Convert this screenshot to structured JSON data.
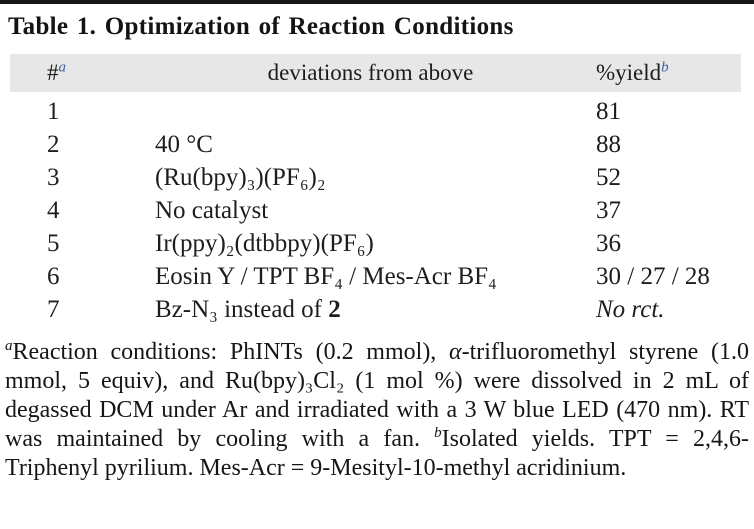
{
  "title": "Table 1. Optimization of Reaction Conditions",
  "colors": {
    "accent_blue": "#3d5f9b",
    "header_bar_gray": "#e7e7e7",
    "top_rule": "#161616",
    "text": "#1d1d1d"
  },
  "table": {
    "header": {
      "number_label": "#",
      "number_sup": "a",
      "deviation_label": "deviations from above",
      "yield_label": "%yield",
      "yield_sup": "b"
    },
    "rows": [
      {
        "num": "1",
        "deviation": [],
        "yield": [
          {
            "t": "81"
          }
        ]
      },
      {
        "num": "2",
        "deviation": [
          {
            "t": "40 °C"
          }
        ],
        "yield": [
          {
            "t": "88"
          }
        ]
      },
      {
        "num": "3",
        "deviation": [
          {
            "t": "(Ru(bpy)₃)(PF₆)₂"
          }
        ],
        "yield": [
          {
            "t": "52"
          }
        ]
      },
      {
        "num": "4",
        "deviation": [
          {
            "t": "No catalyst"
          }
        ],
        "yield": [
          {
            "t": "37"
          }
        ]
      },
      {
        "num": "5",
        "deviation": [
          {
            "t": "Ir(ppy)₂(dtbbpy)(PF₆)"
          }
        ],
        "yield": [
          {
            "t": "36"
          }
        ]
      },
      {
        "num": "6",
        "deviation": [
          {
            "t": "Eosin Y / TPT BF₄ / Mes-Acr BF₄"
          }
        ],
        "yield": [
          {
            "t": "30 / 27 / 28"
          }
        ]
      },
      {
        "num": "7",
        "deviation": [
          {
            "t": "Bz-N₃ instead of "
          },
          {
            "b": "2"
          }
        ],
        "yield": [
          {
            "i": "No rct."
          }
        ]
      }
    ]
  },
  "footnote": {
    "segments": [
      {
        "sup": "a"
      },
      {
        "t": "Reaction conditions: PhINTs (0.2 mmol), "
      },
      {
        "i": "α"
      },
      {
        "t": "-trifluoromethyl styrene (1.0 mmol, 5 equiv), and Ru(bpy)₃Cl₂ (1 mol %) were dissolved in 2 mL of degassed DCM under Ar and irradiated with a 3 W blue LED (470 nm). RT was maintained by cooling with a fan. "
      },
      {
        "sup": "b"
      },
      {
        "t": "Isolated yields. TPT = 2,4,6-Triphenyl pyrilium. Mes-Acr = 9-Mesityl-10-methyl acridinium."
      }
    ]
  }
}
